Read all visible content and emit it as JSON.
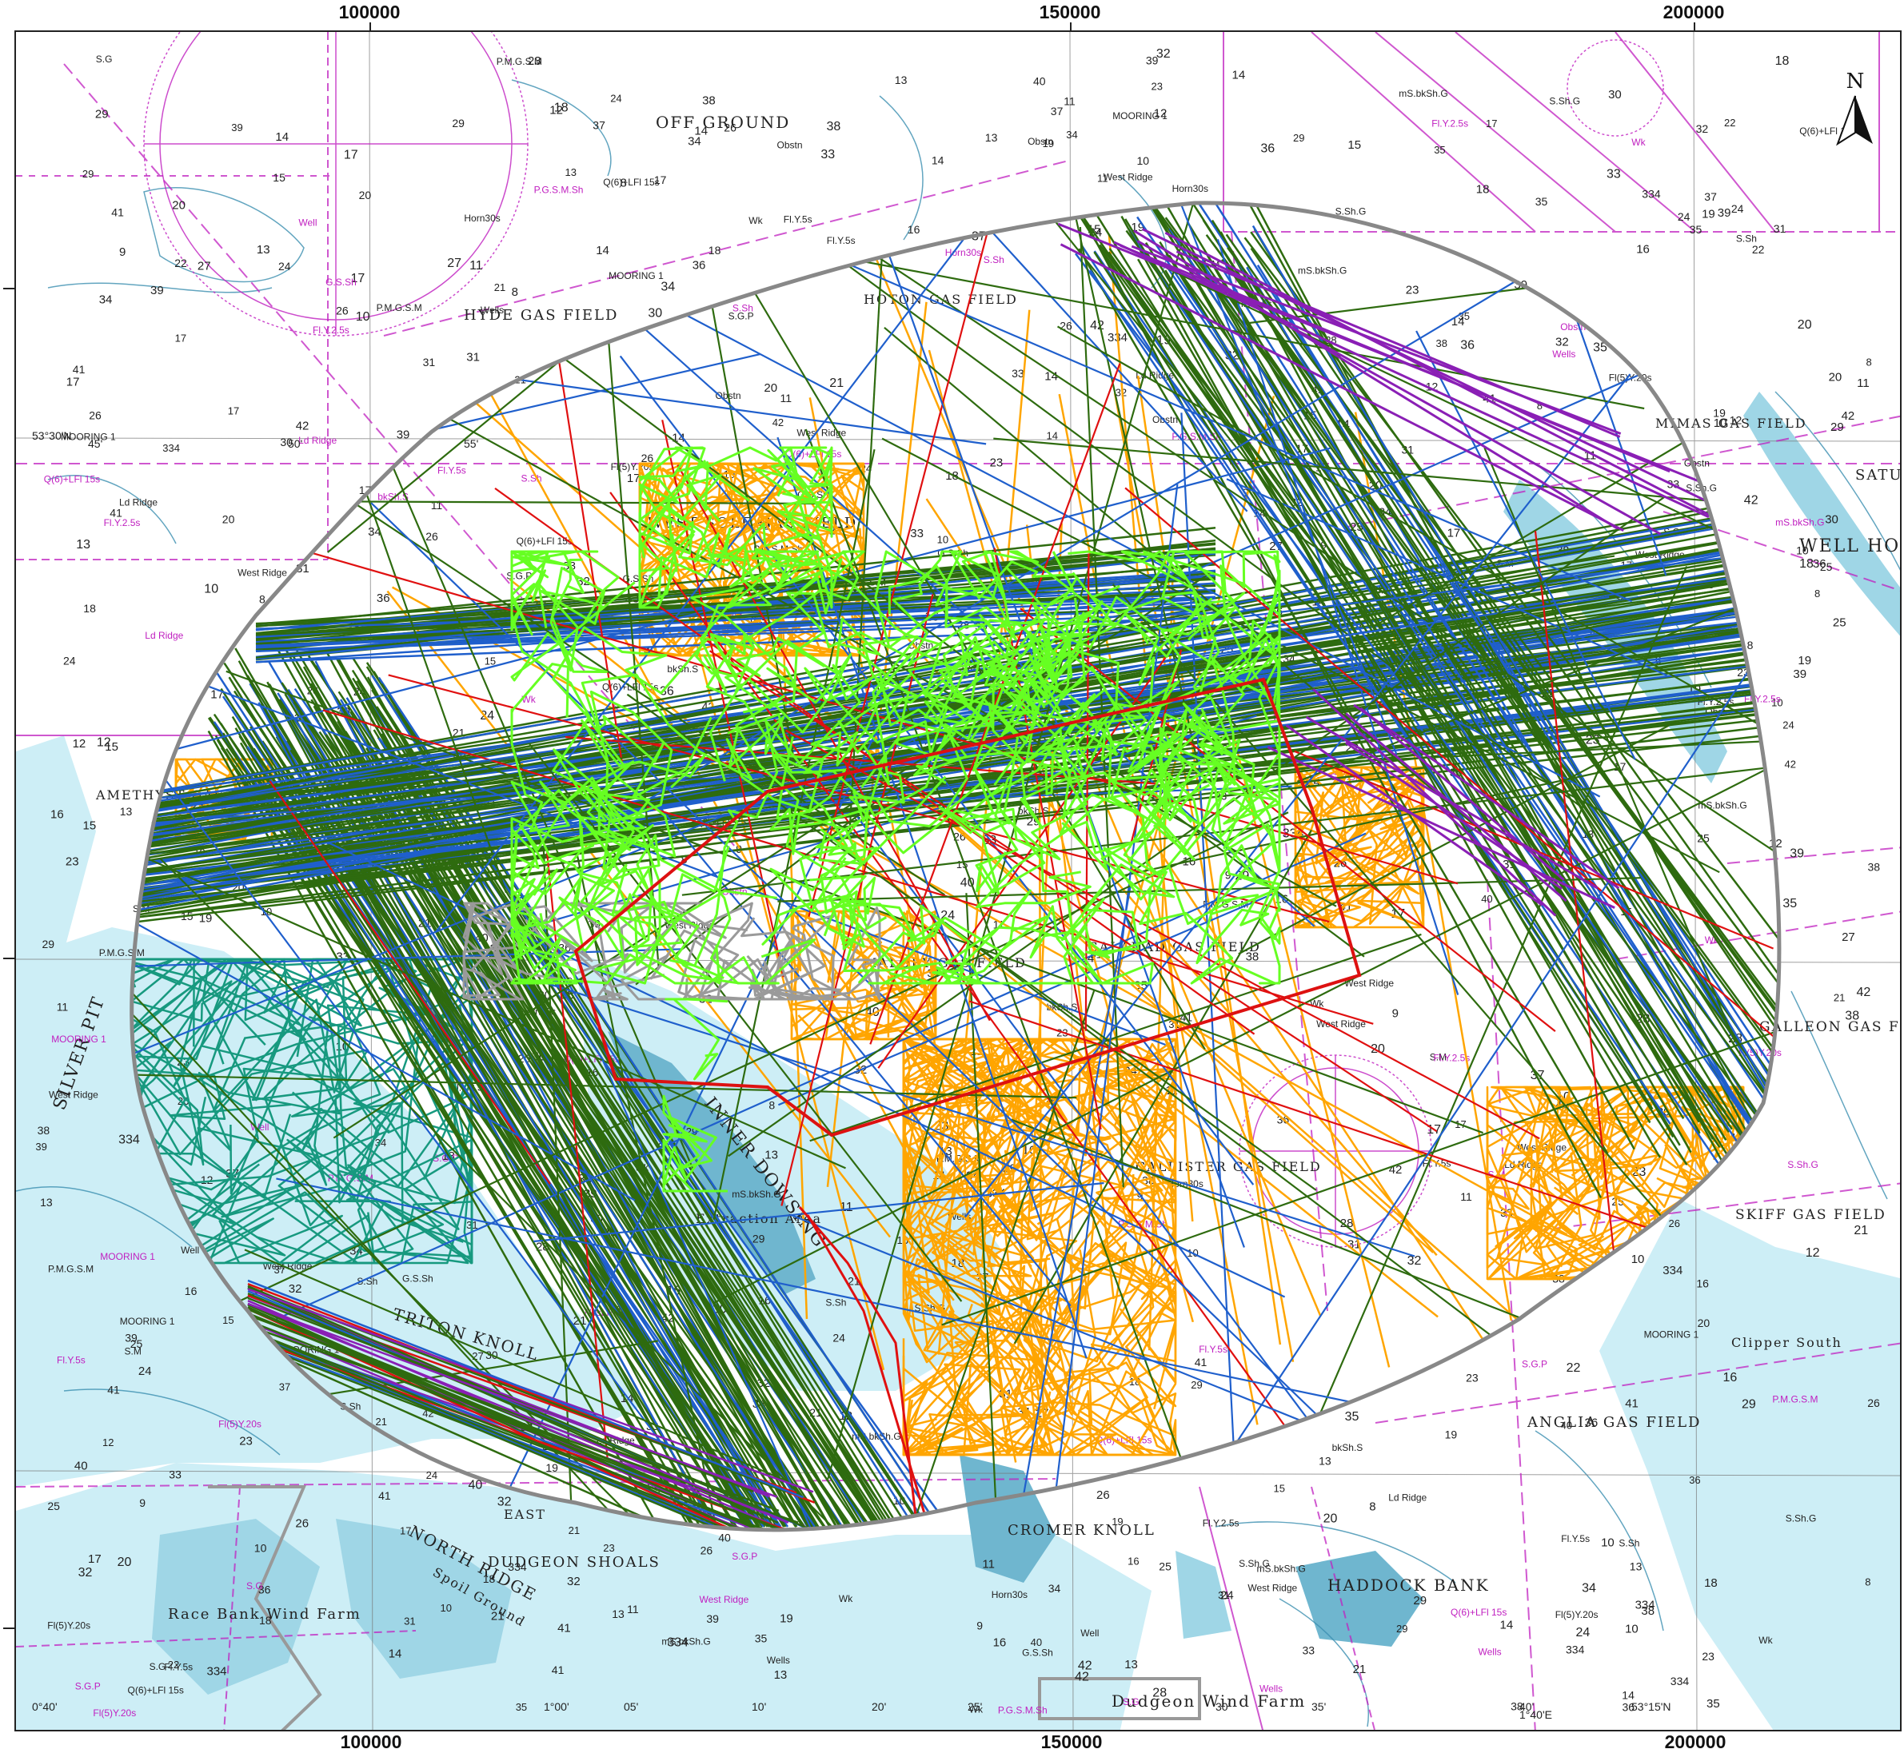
{
  "axis": {
    "eastings_top": [
      "100000",
      "150000",
      "200000"
    ],
    "eastings_bottom": [
      "100000",
      "150000",
      "200000"
    ]
  },
  "north_arrow": {
    "label": "N"
  },
  "colors": {
    "sea_shallow": "#cdeef6",
    "sea_mid": "#9fd6e6",
    "sea_deep": "#6fb6cf",
    "depth_contour": "#3b8fb0",
    "magenta": "#c020c0",
    "boundary": "#888888",
    "polygon": "#dd1111",
    "tracks": {
      "dark_green": "#2e6b0f",
      "blue": "#1f5fcc",
      "orange": "#ffa500",
      "light_green": "#66ff22",
      "teal": "#17997f",
      "purple": "#8a1fb5",
      "red": "#e01010",
      "grey": "#9a9a9a"
    }
  },
  "chart_labels": {
    "places": [
      "OFF GROUND",
      "HYDE GAS FIELD",
      "HOTON GAS FIELD",
      "WEST SOLE GAS FIELD",
      "AMETHYST GAS FIELD",
      "TRITON KNOLL",
      "NORTH RIDGE",
      "DUDGEON SHOALS",
      "CROMER KNOLL",
      "HADDOCK BANK",
      "ANGLIA GAS FIELD",
      "SKIFF GAS FIELD",
      "GALLEON GAS FIELD",
      "SATURN GAS FIELD",
      "WELL HOLE",
      "MIMAS GAS FIELD",
      "GALAHAD GAS FIELD",
      "MALORY GAS FIELD",
      "CALLISTER GAS FIELD",
      "Race Bank Wind Farm",
      "Dudgeon Wind Farm",
      "Clipper South",
      "EAST",
      "Spoil Ground",
      "Extraction Area",
      "SILVER PIT",
      "INNER DOWSING"
    ],
    "soundings": [
      "35",
      "33",
      "38",
      "37",
      "32",
      "36",
      "42",
      "31",
      "34",
      "30",
      "28",
      "29",
      "27",
      "26",
      "25",
      "24",
      "23",
      "22",
      "21",
      "20",
      "19",
      "18",
      "17",
      "16",
      "15",
      "14",
      "13",
      "12",
      "11",
      "10",
      "9",
      "8",
      "41",
      "39",
      "40",
      "334"
    ],
    "abbreviations": [
      "Wk",
      "Well",
      "Obstn",
      "S.G",
      "S.Sh",
      "mS.bkSh.G",
      "Wells",
      "Fl.Y.5s",
      "Horn30s",
      "Fl.Y.2.5s",
      "S.Sh.G",
      "G.S.Sh",
      "bkSh.S",
      "S.G.P",
      "Q(6)+LFl 15s",
      "West Ridge",
      "S.M",
      "P.G.S.M.Sh",
      "P.M.G.S.M",
      "Fl(5)Y.20s",
      "MOORING 1",
      "Ld Ridge"
    ],
    "coordinates": [
      "0°40'",
      "45'",
      "50'",
      "55'",
      "1°00'",
      "05'",
      "10'",
      "20'",
      "25'",
      "30'",
      "35'",
      "40'",
      "53°15'N",
      "1°40'E",
      "53°30'N"
    ]
  }
}
